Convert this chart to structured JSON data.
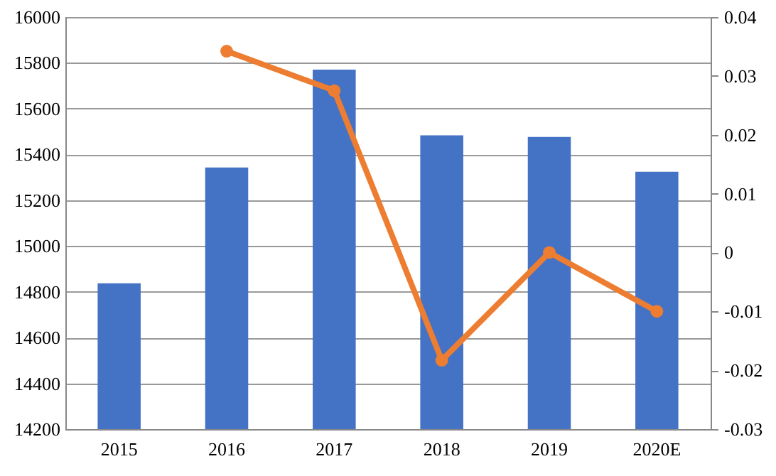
{
  "chart_data": {
    "type": "bar",
    "categories": [
      "2015",
      "2016",
      "2017",
      "2018",
      "2019",
      "2020E"
    ],
    "series": [
      {
        "color": "#4472c4",
        "values": [
          14837,
          15343,
          15770,
          15483,
          15476,
          15324
        ]
      },
      {
        "type": "line",
        "axis": "y2",
        "color": "#ed7d31",
        "marker": "circle",
        "values": [
          null,
          0.0342,
          0.0275,
          -0.0183,
          0.0,
          -0.01
        ]
      }
    ],
    "ylim": [
      14200,
      16000
    ],
    "yticks": [
      14200,
      14400,
      14600,
      14800,
      15000,
      15200,
      15400,
      15600,
      15800,
      16000
    ],
    "y2lim": [
      -0.03,
      0.04
    ],
    "y2ticks": [
      -0.03,
      -0.02,
      -0.01,
      0,
      0.01,
      0.02,
      0.03,
      0.04
    ],
    "grid": "y"
  }
}
